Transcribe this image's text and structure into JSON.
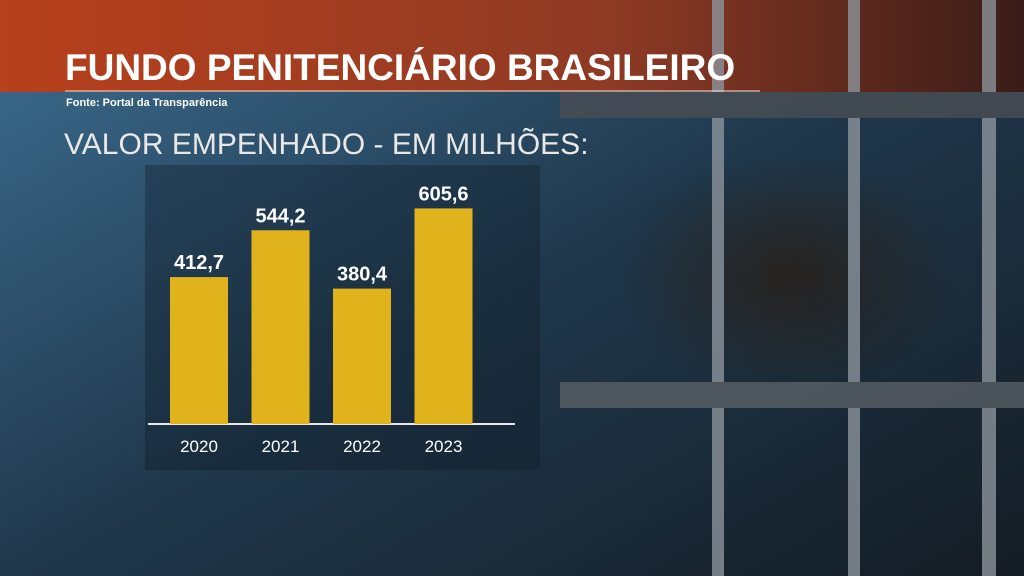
{
  "chart_data": {
    "type": "bar",
    "title": "FUNDO PENITENCIÁRIO BRASILEIRO",
    "subtitle": "Fonte: Portal da Transparência",
    "y_label": "VALOR EMPENHADO - EM MILHÕES:",
    "categories": [
      "2020",
      "2021",
      "2022",
      "2023"
    ],
    "values": [
      412.7,
      544.2,
      380.4,
      605.6
    ],
    "value_labels": [
      "412,7",
      "544,2",
      "380,4",
      "605,6"
    ],
    "color": "#e0b21c"
  }
}
